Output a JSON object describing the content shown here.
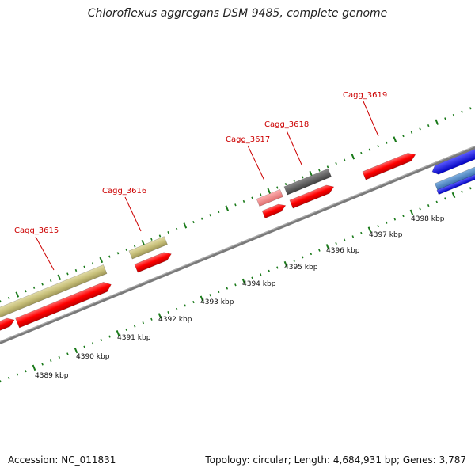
{
  "title": "Chloroflexus aggregans DSM 9485, complete genome",
  "footer": {
    "accession": "Accession: NC_011831",
    "stats": "Topology: circular; Length: 4,684,931 bp; Genes: 3,787"
  },
  "kbp_labels": [
    "4389 kbp",
    "4390 kbp",
    "4391 kbp",
    "4392 kbp",
    "4393 kbp",
    "4394 kbp",
    "4395 kbp",
    "4396 kbp",
    "4397 kbp",
    "4398 kbp"
  ],
  "locus_labels": [
    "Cagg_3615",
    "Cagg_3616",
    "Cagg_3617",
    "Cagg_3618",
    "Cagg_3619"
  ],
  "colors": {
    "tick": "#1a7a1a",
    "backbone": "#888888",
    "cds": "#ff0000",
    "gene_tan": "#c8c07a",
    "gene_pink": "#f08080",
    "gene_dark": "#606060",
    "gene_blue": "#0000ff",
    "gene_lightblue": "#4a86c8",
    "locus_text": "#cc0000"
  }
}
